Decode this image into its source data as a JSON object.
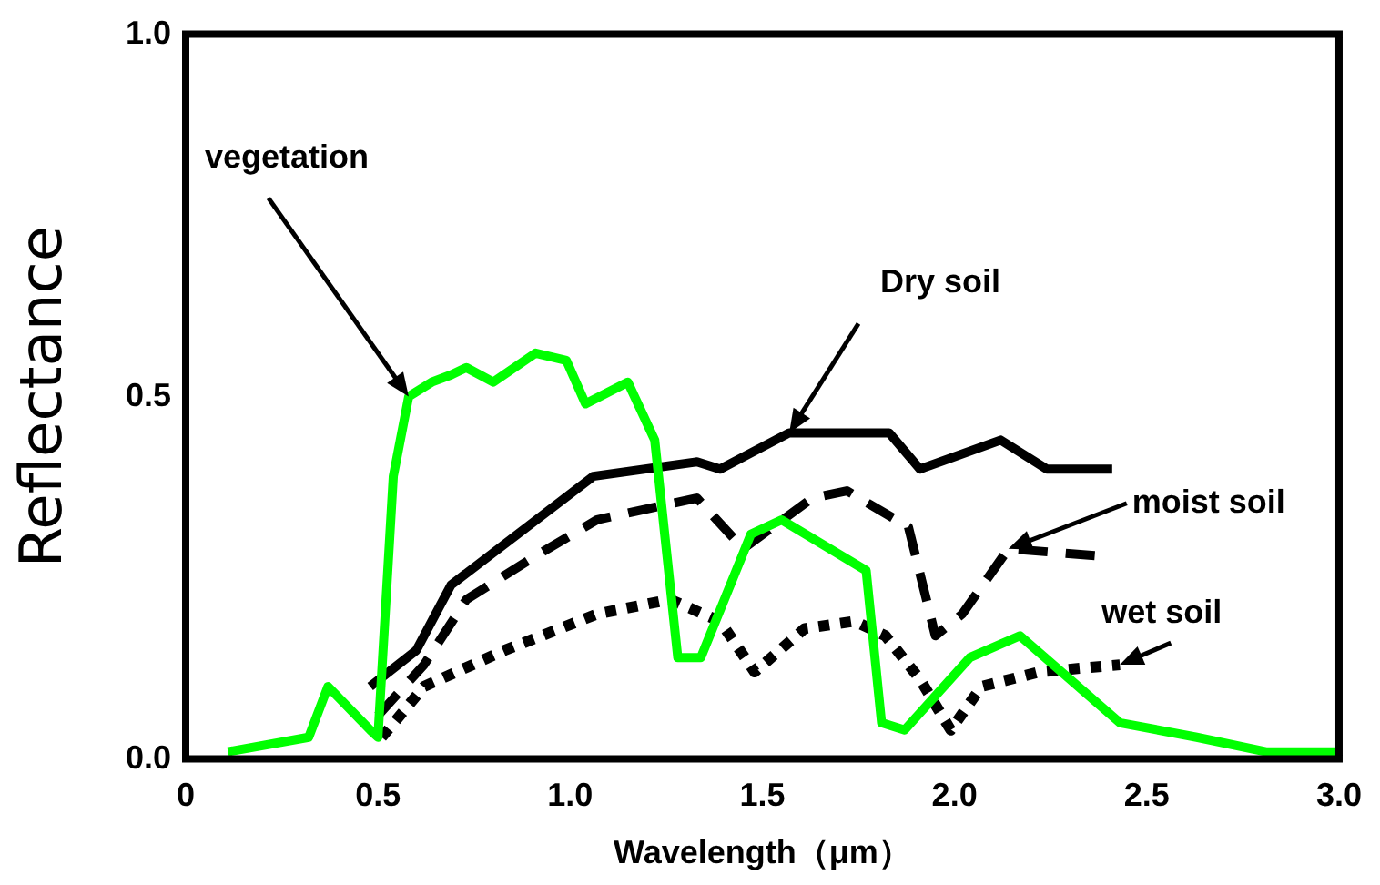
{
  "chart_data": {
    "type": "line",
    "xlabel": "Wavelength（μm）",
    "ylabel": "Reflectance",
    "xlim": [
      0,
      3.0
    ],
    "xticks": [
      {
        "value": 0,
        "label": "0"
      },
      0.5,
      {
        "value": 1,
        "label": "1.0"
      },
      1.5,
      {
        "value": 2,
        "label": "2.0"
      },
      2.5,
      {
        "value": 3,
        "label": "3.0"
      }
    ],
    "ylim": [
      0,
      1.0
    ],
    "yticks": [
      {
        "value": 0,
        "label": "0.0"
      },
      0.5,
      {
        "value": 1,
        "label": "1.0"
      }
    ],
    "grid": false,
    "legend": false,
    "marker": "none",
    "series": [
      {
        "color": "#00ff00",
        "line_style": "solid",
        "x": [
          0.11,
          0.32,
          0.37,
          0.48,
          0.5,
          0.54,
          0.58,
          0.64,
          0.69,
          0.73,
          0.8,
          0.91,
          0.99,
          1.04,
          1.15,
          1.22,
          1.28,
          1.34,
          1.47,
          1.55,
          1.77,
          1.81,
          1.87,
          2.04,
          2.17,
          2.43,
          2.63,
          2.81,
          3.0
        ],
        "values": [
          0.01,
          0.03,
          0.1,
          0.04,
          0.03,
          0.39,
          0.5,
          0.52,
          0.53,
          0.54,
          0.52,
          0.56,
          0.55,
          0.49,
          0.52,
          0.44,
          0.14,
          0.14,
          0.31,
          0.33,
          0.26,
          0.05,
          0.04,
          0.14,
          0.17,
          0.05,
          0.03,
          0.01,
          0.01
        ]
      },
      {
        "color": "#000000",
        "line_style": "solid",
        "x": [
          0.48,
          0.6,
          0.69,
          1.06,
          1.33,
          1.39,
          1.57,
          1.83,
          1.91,
          2.12,
          2.24,
          2.41
        ],
        "values": [
          0.1,
          0.15,
          0.24,
          0.39,
          0.41,
          0.4,
          0.45,
          0.45,
          0.4,
          0.44,
          0.4,
          0.4
        ]
      },
      {
        "color": "#000000",
        "line_style": "dashed",
        "x": [
          0.5,
          0.62,
          0.73,
          0.91,
          1.07,
          1.33,
          1.45,
          1.63,
          1.72,
          1.88,
          1.95,
          2.02,
          2.14,
          2.38
        ],
        "values": [
          0.06,
          0.13,
          0.22,
          0.28,
          0.33,
          0.36,
          0.29,
          0.36,
          0.37,
          0.32,
          0.17,
          0.2,
          0.29,
          0.28
        ]
      },
      {
        "color": "#000000",
        "line_style": "dotted",
        "x": [
          0.51,
          0.62,
          0.83,
          1.07,
          1.26,
          1.39,
          1.48,
          1.61,
          1.74,
          1.82,
          1.91,
          1.99,
          2.07,
          2.22,
          2.43
        ],
        "values": [
          0.03,
          0.1,
          0.15,
          0.2,
          0.22,
          0.19,
          0.12,
          0.18,
          0.19,
          0.17,
          0.11,
          0.04,
          0.1,
          0.12,
          0.13
        ]
      }
    ],
    "annotations": [
      {
        "text": "vegetation",
        "x": 0.58,
        "y": 0.5
      },
      {
        "text": "Dry soil",
        "x": 1.57,
        "y": 0.45
      },
      {
        "text": "moist soil",
        "x": 2.14,
        "y": 0.29
      },
      {
        "text": "wet soil",
        "x": 2.43,
        "y": 0.13
      }
    ]
  }
}
